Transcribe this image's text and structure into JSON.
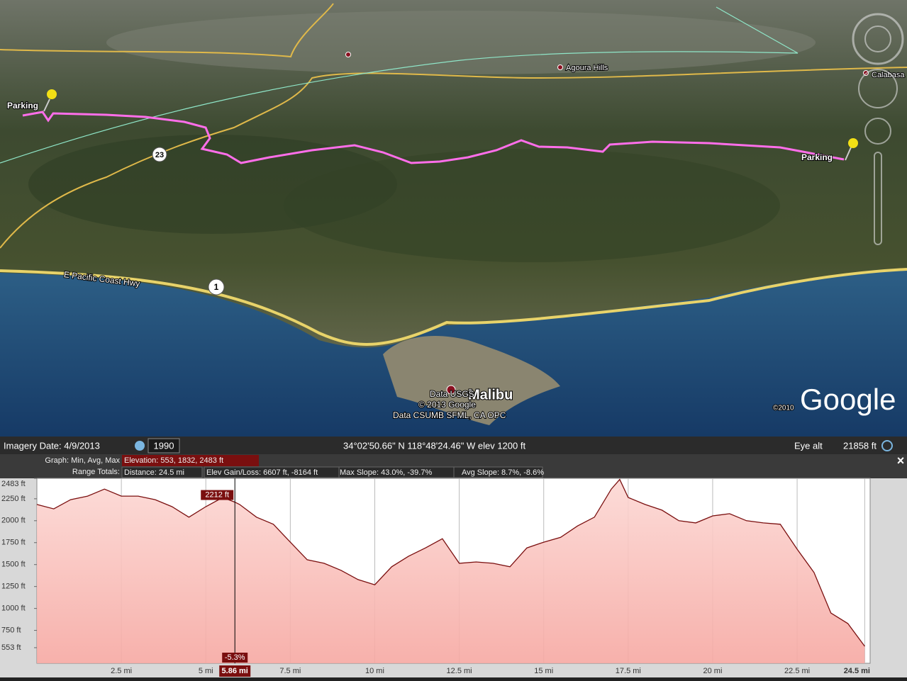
{
  "map": {
    "labels": {
      "parking_west": "Parking",
      "parking_east": "Parking",
      "agoura": "Agoura Hills",
      "calabasas": "Calabasa",
      "hwy23": "23",
      "hwy1": "1",
      "pch": "E Pacific Coast Hwy",
      "malibu": "Malibu",
      "data_usgs": "Data USGS",
      "copyright_2013": "© 2013 Google",
      "data_csumb": "Data CSUMB SFML, CA OPC",
      "copyright_2010": "©2010",
      "google": "Google"
    }
  },
  "status_bar": {
    "imagery_date": "Imagery Date: 4/9/2013",
    "historical_year": "1990",
    "coordinates": "34°02'50.66\" N 118°48'24.46\" W elev  1200 ft",
    "eye_alt_label": "Eye alt",
    "eye_alt": "21858 ft"
  },
  "profile_header": {
    "graph_label": "Graph: Min, Avg, Max",
    "elevation": "Elevation: 553, 1832, 2483 ft",
    "range_label": "Range Totals:",
    "distance": "Distance: 24.5 mi",
    "elev_gain_loss": "Elev Gain/Loss: 6607 ft, -8164 ft",
    "max_slope": "Max Slope: 43.0%, -39.7%",
    "avg_slope": "Avg Slope: 8.7%, -8.6%",
    "close": "×"
  },
  "chart_data": {
    "type": "area",
    "x": [
      0,
      0.5,
      1,
      1.5,
      2,
      2.5,
      3,
      3.5,
      4,
      4.5,
      5,
      5.5,
      5.86,
      6,
      6.5,
      7,
      7.5,
      8,
      8.5,
      9,
      9.5,
      10,
      10.5,
      11,
      11.5,
      12,
      12.5,
      13,
      13.5,
      14,
      14.5,
      15,
      15.5,
      16,
      16.5,
      17,
      17.25,
      17.5,
      18,
      18.5,
      19,
      19.5,
      20,
      20.5,
      21,
      21.5,
      22,
      22.5,
      23,
      23.5,
      24,
      24.5
    ],
    "values": [
      2185,
      2135,
      2240,
      2280,
      2360,
      2280,
      2280,
      2240,
      2160,
      2040,
      2160,
      2265,
      2212,
      2185,
      2040,
      1960,
      1755,
      1555,
      1515,
      1435,
      1330,
      1270,
      1475,
      1595,
      1690,
      1795,
      1515,
      1530,
      1515,
      1475,
      1690,
      1755,
      1810,
      1940,
      2040,
      2360,
      2470,
      2265,
      2185,
      2120,
      2000,
      1975,
      2055,
      2080,
      2000,
      1975,
      1960,
      1675,
      1410,
      948,
      828,
      569
    ],
    "line_color": "#7a0f0f",
    "fill_color": "#f7b5b0",
    "xlim": [
      0,
      24.66
    ],
    "ylim": [
      375,
      2483
    ],
    "xticks": [
      {
        "value": 2.5,
        "label": "2.5 mi"
      },
      {
        "value": 5,
        "label": "5 mi"
      },
      {
        "value": 7.5,
        "label": "7.5 mi"
      },
      {
        "value": 10,
        "label": "10 mi"
      },
      {
        "value": 12.5,
        "label": "12.5 mi"
      },
      {
        "value": 15,
        "label": "15 mi"
      },
      {
        "value": 17.5,
        "label": "17.5 mi"
      },
      {
        "value": 20,
        "label": "20 mi"
      },
      {
        "value": 22.5,
        "label": "22.5 mi"
      },
      {
        "value": 24.5,
        "label": "24.5 mi"
      }
    ],
    "yticks": [
      {
        "value": 553,
        "label": "553 ft"
      },
      {
        "value": 750,
        "label": "750 ft"
      },
      {
        "value": 1000,
        "label": "1000 ft"
      },
      {
        "value": 1250,
        "label": "1250 ft"
      },
      {
        "value": 1500,
        "label": "1500 ft"
      },
      {
        "value": 1750,
        "label": "1750 ft"
      },
      {
        "value": 2000,
        "label": "2000 ft"
      },
      {
        "value": 2250,
        "label": "2250 ft"
      },
      {
        "value": 2483,
        "label": "2483 ft"
      }
    ],
    "grid": "x",
    "cursor": {
      "x": 5.86,
      "x_label": "5.86 mi",
      "value": 2212,
      "value_label": "2212 ft",
      "slope_label": "-5.3%"
    }
  }
}
